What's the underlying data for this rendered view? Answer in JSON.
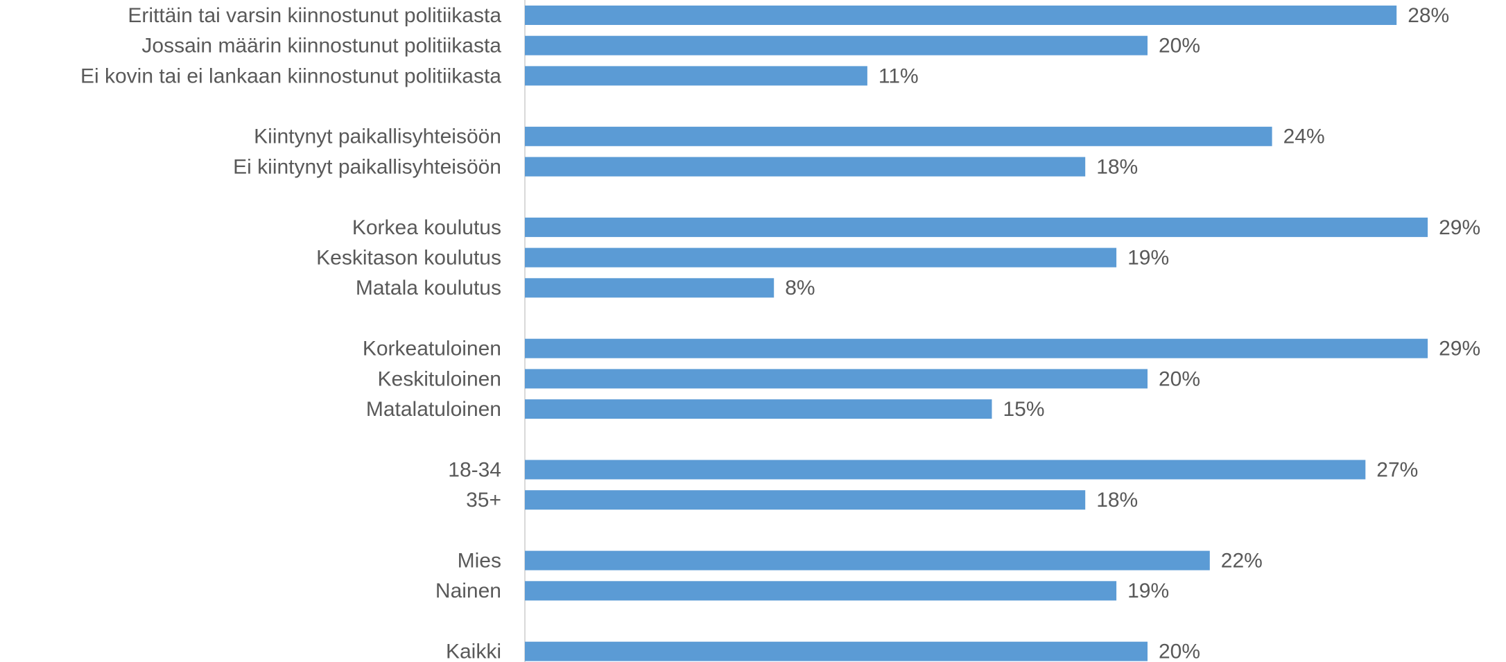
{
  "chart_data": {
    "type": "barh",
    "categories": [
      "Erittäin tai varsin kiinnostunut politiikasta",
      "Jossain määrin kiinnostunut politiikasta",
      "Ei kovin tai ei lankaan kiinnostunut politiikasta",
      null,
      "Kiintynyt paikallisyhteisöön",
      "Ei kiintynyt paikallisyhteisöön",
      null,
      "Korkea koulutus",
      "Keskitason koulutus",
      "Matala koulutus",
      null,
      "Korkeatuloinen",
      "Keskituloinen",
      "Matalatuloinen",
      null,
      "18-34",
      "35+",
      null,
      "Mies",
      "Nainen",
      null,
      "Kaikki"
    ],
    "values": [
      28,
      20,
      11,
      null,
      24,
      18,
      null,
      29,
      19,
      8,
      null,
      29,
      20,
      15,
      null,
      27,
      18,
      null,
      22,
      19,
      null,
      20
    ],
    "value_labels": [
      "28%",
      "20%",
      "11%",
      null,
      "24%",
      "18%",
      null,
      "29%",
      "19%",
      "8%",
      null,
      "29%",
      "20%",
      "15%",
      null,
      "27%",
      "18%",
      null,
      "22%",
      "19%",
      null,
      "20%"
    ],
    "color": "#5b9bd5",
    "xlim": [
      0,
      30
    ]
  }
}
